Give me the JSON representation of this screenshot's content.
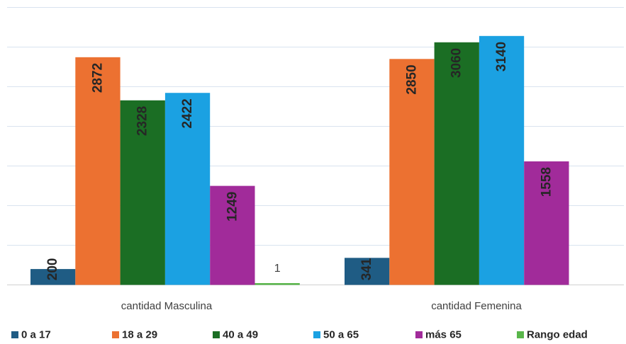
{
  "chart_data": {
    "type": "bar",
    "title": "",
    "xlabel": "",
    "ylabel": "",
    "categories": [
      "cantidad Masculina",
      "cantidad Femenina"
    ],
    "series": [
      {
        "name": "0 a 17",
        "values": [
          200,
          341
        ],
        "color": "#1F5C84"
      },
      {
        "name": "18 a 29",
        "values": [
          2872,
          2850
        ],
        "color": "#EC7131"
      },
      {
        "name": "40 a 49",
        "values": [
          2328,
          3060
        ],
        "color": "#1B6E24"
      },
      {
        "name": "50 a 65",
        "values": [
          2422,
          3140
        ],
        "color": "#1BA1E2"
      },
      {
        "name": "más 65",
        "values": [
          1249,
          1558
        ],
        "color": "#A12B9A"
      },
      {
        "name": "Rango edad",
        "values": [
          1,
          null
        ],
        "color": "#59B64A"
      }
    ],
    "ylim": [
      0,
      3500
    ],
    "grid": true,
    "legend": "bottom"
  }
}
